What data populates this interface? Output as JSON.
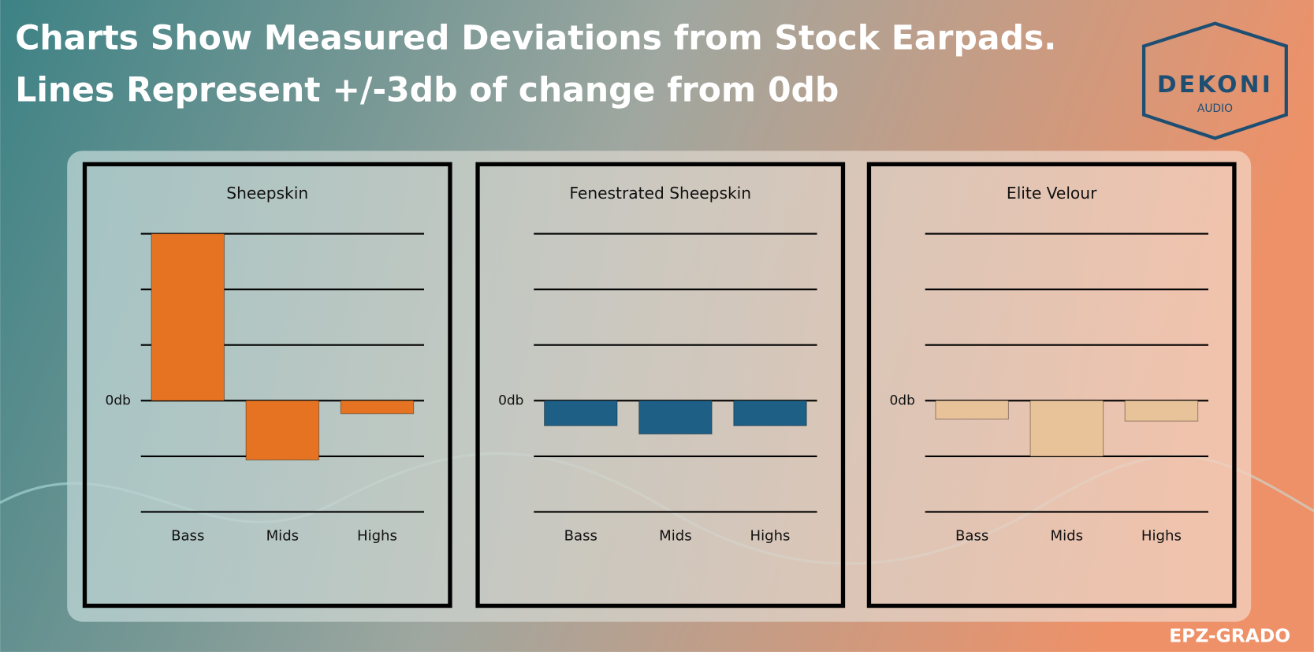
{
  "header": {
    "title_lines": [
      "Charts Show Measured Deviations from Stock Earpads.",
      "Lines Represent +/-3db of change from 0db"
    ]
  },
  "logo": {
    "name": "DEKONI",
    "sub": "AUDIO"
  },
  "footer": "EPZ-GRADO",
  "chart_data": [
    {
      "type": "bar",
      "title": "Sheepskin",
      "categories": [
        "Bass",
        "Mids",
        "Highs"
      ],
      "values": [
        9,
        -3.2,
        -0.7
      ],
      "color": "#e57322",
      "ylim": [
        -6,
        9
      ],
      "yticks": [
        {
          "value": 0,
          "label": "0db"
        }
      ],
      "gridlines": [
        -6,
        -3,
        0,
        3,
        6,
        9
      ]
    },
    {
      "type": "bar",
      "title": "Fenestrated Sheepskin",
      "categories": [
        "Bass",
        "Mids",
        "Highs"
      ],
      "values": [
        -1.35,
        -1.8,
        -1.35
      ],
      "color": "#1e5f86",
      "ylim": [
        -6,
        9
      ],
      "yticks": [
        {
          "value": 0,
          "label": "0db"
        }
      ],
      "gridlines": [
        -6,
        -3,
        0,
        3,
        6,
        9
      ]
    },
    {
      "type": "bar",
      "title": "Elite Velour",
      "categories": [
        "Bass",
        "Mids",
        "Highs"
      ],
      "values": [
        -1.0,
        -3.0,
        -1.1
      ],
      "color": "#e8c299",
      "ylim": [
        -6,
        9
      ],
      "yticks": [
        {
          "value": 0,
          "label": "0db"
        }
      ],
      "gridlines": [
        -6,
        -3,
        0,
        3,
        6,
        9
      ]
    }
  ]
}
